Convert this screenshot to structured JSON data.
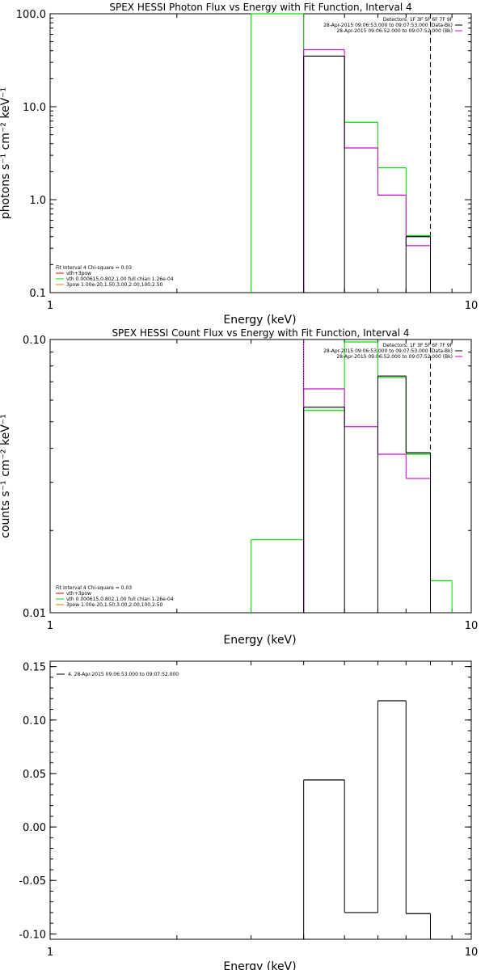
{
  "colors": {
    "black": "#000000",
    "green": "#00e000",
    "magenta": "#d000d0",
    "orange": "#e08000",
    "red": "#e00000"
  },
  "chart_data": [
    {
      "type": "line",
      "title": "SPEX HESSI Photon Flux vs Energy with Fit Function, Interval 4",
      "xlabel": "Energy (keV)",
      "ylabel": "photons s⁻¹ cm⁻² keV⁻¹",
      "xscale": "log",
      "yscale": "log",
      "xlim": [
        1,
        10
      ],
      "ylim": [
        0.1,
        100
      ],
      "xticklabels": [
        "1",
        "10"
      ],
      "yticks": [
        0.1,
        1.0,
        10.0,
        100.0
      ],
      "yticklabels": [
        "0.1",
        "1.0",
        "10.0",
        "100.0"
      ],
      "legend_top": [
        {
          "text": "Detectors: 1F 3F 5F 6F 7F 9F",
          "color": "#000000"
        },
        {
          "text": "28-Apr-2015 09:06:53.000 to 09:07:53.000 (Data-Bk)",
          "color": "#000000"
        },
        {
          "text": "28-Apr-2015 09:06:52.000 to 09:07:52.000 (Bk)",
          "color": "#d000d0"
        }
      ],
      "legend_bottom": [
        {
          "text": "Fit Interval 4   Chi-square = 0.03",
          "color": "#000000"
        },
        {
          "text": "vth+3pow",
          "color": "#e00000"
        },
        {
          "text": "vth 0.000615,0.802,1.00  full chian 1.26e-04",
          "color": "#00e000"
        },
        {
          "text": "3pow 1.00e-20,1.50,3.00,2.00,100,2.50",
          "color": "#e08000"
        }
      ],
      "series": [
        {
          "color": "#000000",
          "bins": [
            [
              4.0,
              5.0,
              35
            ],
            [
              7.0,
              8.0,
              0.4
            ]
          ]
        },
        {
          "color": "#00e000",
          "bins": [
            [
              3.0,
              4.0,
              100
            ],
            [
              4.0,
              5.0,
              35
            ],
            [
              5.0,
              6.0,
              6.8
            ],
            [
              6.0,
              7.0,
              2.2
            ],
            [
              7.0,
              8.0,
              0.41
            ]
          ]
        },
        {
          "color": "#d000d0",
          "bins": [
            [
              4.0,
              5.0,
              41
            ],
            [
              5.0,
              6.0,
              3.6
            ],
            [
              6.0,
              7.0,
              1.12
            ],
            [
              7.0,
              8.0,
              0.32
            ]
          ]
        }
      ],
      "vlines": [
        {
          "x": 3.0,
          "color": "#00e000",
          "style": "solid"
        },
        {
          "x": 4.0,
          "color": "#d000d0",
          "style": "solid"
        },
        {
          "x": 8.0,
          "color": "#000000",
          "style": "dashed"
        }
      ]
    },
    {
      "type": "line",
      "title": "SPEX HESSI Count Flux vs Energy with Fit Function, Interval 4",
      "xlabel": "Energy (keV)",
      "ylabel": "counts s⁻¹ cm⁻² keV⁻¹",
      "xscale": "log",
      "yscale": "log",
      "xlim": [
        1,
        10
      ],
      "ylim": [
        0.01,
        0.1
      ],
      "xticklabels": [
        "1",
        "10"
      ],
      "yticks": [
        0.01,
        0.1
      ],
      "yticklabels": [
        "0.01",
        "0.10"
      ],
      "legend_top": [
        {
          "text": "Detectors: 1F 3F 5F 6F 7F 9F",
          "color": "#000000"
        },
        {
          "text": "28-Apr-2015 09:06:53.000 to 09:07:53.000 (Data-Bk)",
          "color": "#000000"
        },
        {
          "text": "28-Apr-2015 09:06:52.000 to 09:07:52.000 (Bk)",
          "color": "#d000d0"
        }
      ],
      "legend_bottom": [
        {
          "text": "Fit Interval 4   Chi-square = 0.03",
          "color": "#000000"
        },
        {
          "text": "vth+3pow",
          "color": "#e00000"
        },
        {
          "text": "vth 0.000615,0.802,1.00  full chian 1.26e-04",
          "color": "#00e000"
        },
        {
          "text": "3pow 1.00e-20,1.50,3.00,2.00,100,2.50",
          "color": "#e08000"
        }
      ],
      "series": [
        {
          "color": "#000000",
          "bins": [
            [
              4.0,
              5.0,
              0.0565
            ],
            [
              6.0,
              7.0,
              0.0735
            ],
            [
              7.0,
              8.0,
              0.0385
            ]
          ]
        },
        {
          "color": "#00e000",
          "bins": [
            [
              3.0,
              4.0,
              0.0185
            ],
            [
              4.0,
              5.0,
              0.055
            ],
            [
              5.0,
              6.0,
              0.098
            ],
            [
              6.0,
              7.0,
              0.0725
            ],
            [
              7.0,
              8.0,
              0.038
            ],
            [
              8.0,
              9.0,
              0.0131
            ]
          ]
        },
        {
          "color": "#d000d0",
          "bins": [
            [
              4.0,
              5.0,
              0.066
            ],
            [
              5.0,
              6.0,
              0.048
            ],
            [
              6.0,
              7.0,
              0.038
            ],
            [
              7.0,
              8.0,
              0.031
            ]
          ]
        }
      ],
      "vlines": [
        {
          "x": 4.0,
          "color": "#d000d0",
          "style": "solid"
        },
        {
          "x": 4.0,
          "color": "#000000",
          "style": "dotted"
        },
        {
          "x": 8.0,
          "color": "#000000",
          "style": "dashed"
        }
      ]
    },
    {
      "type": "line",
      "title": "",
      "xlabel": "Energy (keV)",
      "ylabel": "",
      "xscale": "log",
      "yscale": "linear",
      "xlim": [
        1,
        10
      ],
      "ylim": [
        -0.105,
        0.155
      ],
      "xticklabels": [
        "1",
        "10"
      ],
      "yticks": [
        -0.1,
        -0.05,
        0.0,
        0.05,
        0.1,
        0.15
      ],
      "yticklabels": [
        "-0.10",
        "-0.05",
        "0.00",
        "0.05",
        "0.10",
        "0.15"
      ],
      "legend_top": [
        {
          "text": "4. 28-Apr-2015 09:06:53.000 to 09:07:52.000",
          "color": "#000000"
        }
      ],
      "series": [
        {
          "color": "#000000",
          "bins": [
            [
              4.0,
              5.0,
              0.044
            ],
            [
              5.0,
              6.0,
              -0.08
            ],
            [
              6.0,
              7.0,
              0.118
            ],
            [
              7.0,
              8.0,
              -0.081
            ]
          ]
        }
      ]
    }
  ]
}
